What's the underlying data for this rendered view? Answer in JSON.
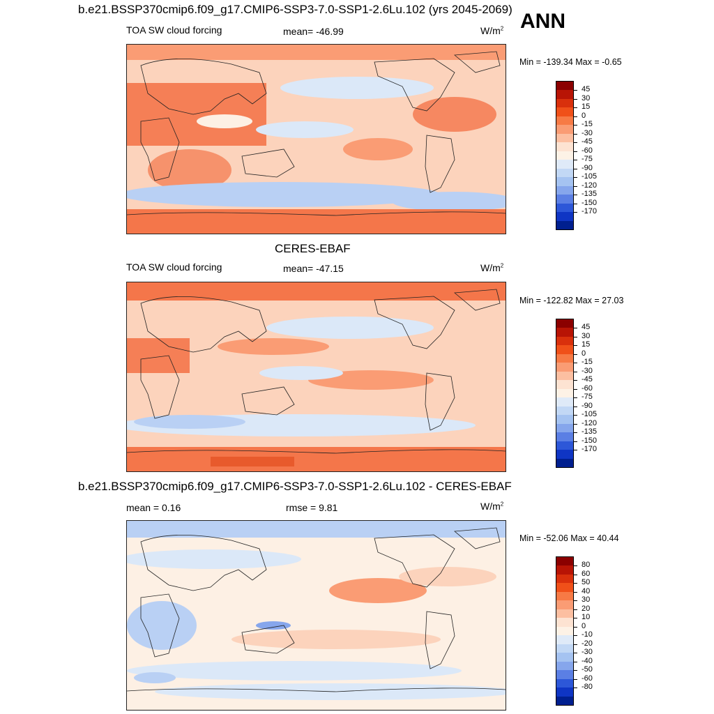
{
  "header": {
    "title": "b.e21.BSSP370cmip6.f09_g17.CMIP6-SSP3-7.0-SSP1-2.6Lu.102 (yrs 2045-2069)",
    "season": "ANN"
  },
  "panels": [
    {
      "title": "",
      "variable": "TOA SW cloud forcing",
      "mean_text": "mean= -46.99",
      "extra_text": "",
      "units": "W/m",
      "units_sup": "2",
      "minmax": "Min = -139.34 Max =  -0.65",
      "colorbar_levels": [
        "45",
        "30",
        "15",
        "0",
        "-15",
        "-30",
        "-45",
        "-60",
        "-75",
        "-90",
        "-105",
        "-120",
        "-135",
        "-150",
        "-170"
      ],
      "colorbar_colors": [
        "#8b0000",
        "#b81405",
        "#d9300c",
        "#f05019",
        "#f77a45",
        "#fa9c74",
        "#fcbfa1",
        "#fde3d2",
        "#fdf2e6",
        "#dfeaf8",
        "#c2d8f5",
        "#a5c3f1",
        "#86a6ec",
        "#5b7fe4",
        "#2d57d8",
        "#0f35c4",
        "#001f8f"
      ]
    },
    {
      "title": "CERES-EBAF",
      "variable": "TOA SW cloud forcing",
      "mean_text": "mean= -47.15",
      "extra_text": "",
      "units": "W/m",
      "units_sup": "2",
      "minmax": "Min = -122.82 Max =  27.03",
      "colorbar_levels": [
        "45",
        "30",
        "15",
        "0",
        "-15",
        "-30",
        "-45",
        "-60",
        "-75",
        "-90",
        "-105",
        "-120",
        "-135",
        "-150",
        "-170"
      ],
      "colorbar_colors": [
        "#8b0000",
        "#b81405",
        "#d9300c",
        "#f05019",
        "#f77a45",
        "#fa9c74",
        "#fcbfa1",
        "#fde3d2",
        "#fdf2e6",
        "#dfeaf8",
        "#c2d8f5",
        "#a5c3f1",
        "#86a6ec",
        "#5b7fe4",
        "#2d57d8",
        "#0f35c4",
        "#001f8f"
      ]
    },
    {
      "title": "b.e21.BSSP370cmip6.f09_g17.CMIP6-SSP3-7.0-SSP1-2.6Lu.102 - CERES-EBAF",
      "variable": "",
      "mean_text": "mean =   0.16",
      "extra_text": "rmse =   9.81",
      "units": "W/m",
      "units_sup": "2",
      "minmax": "Min = -52.06 Max =  40.44",
      "colorbar_levels": [
        "80",
        "60",
        "50",
        "40",
        "30",
        "20",
        "10",
        "0",
        "-10",
        "-20",
        "-30",
        "-40",
        "-50",
        "-60",
        "-80"
      ],
      "colorbar_colors": [
        "#8b0000",
        "#b81405",
        "#d9300c",
        "#f05019",
        "#f77a45",
        "#fa9c74",
        "#fcbfa1",
        "#fde3d2",
        "#fdf2e6",
        "#dfeaf8",
        "#c2d8f5",
        "#a5c3f1",
        "#86a6ec",
        "#5b7fe4",
        "#2d57d8",
        "#0f35c4",
        "#001f8f"
      ]
    }
  ],
  "colors": {
    "warm_strong": "#f4764a",
    "warm_mid": "#fa9c74",
    "warm_light": "#fcd3bc",
    "neutral": "#fdf0e4",
    "cool_light": "#dbe8f8",
    "cool_mid": "#b9d0f4",
    "cool_strong": "#8eaaee"
  }
}
